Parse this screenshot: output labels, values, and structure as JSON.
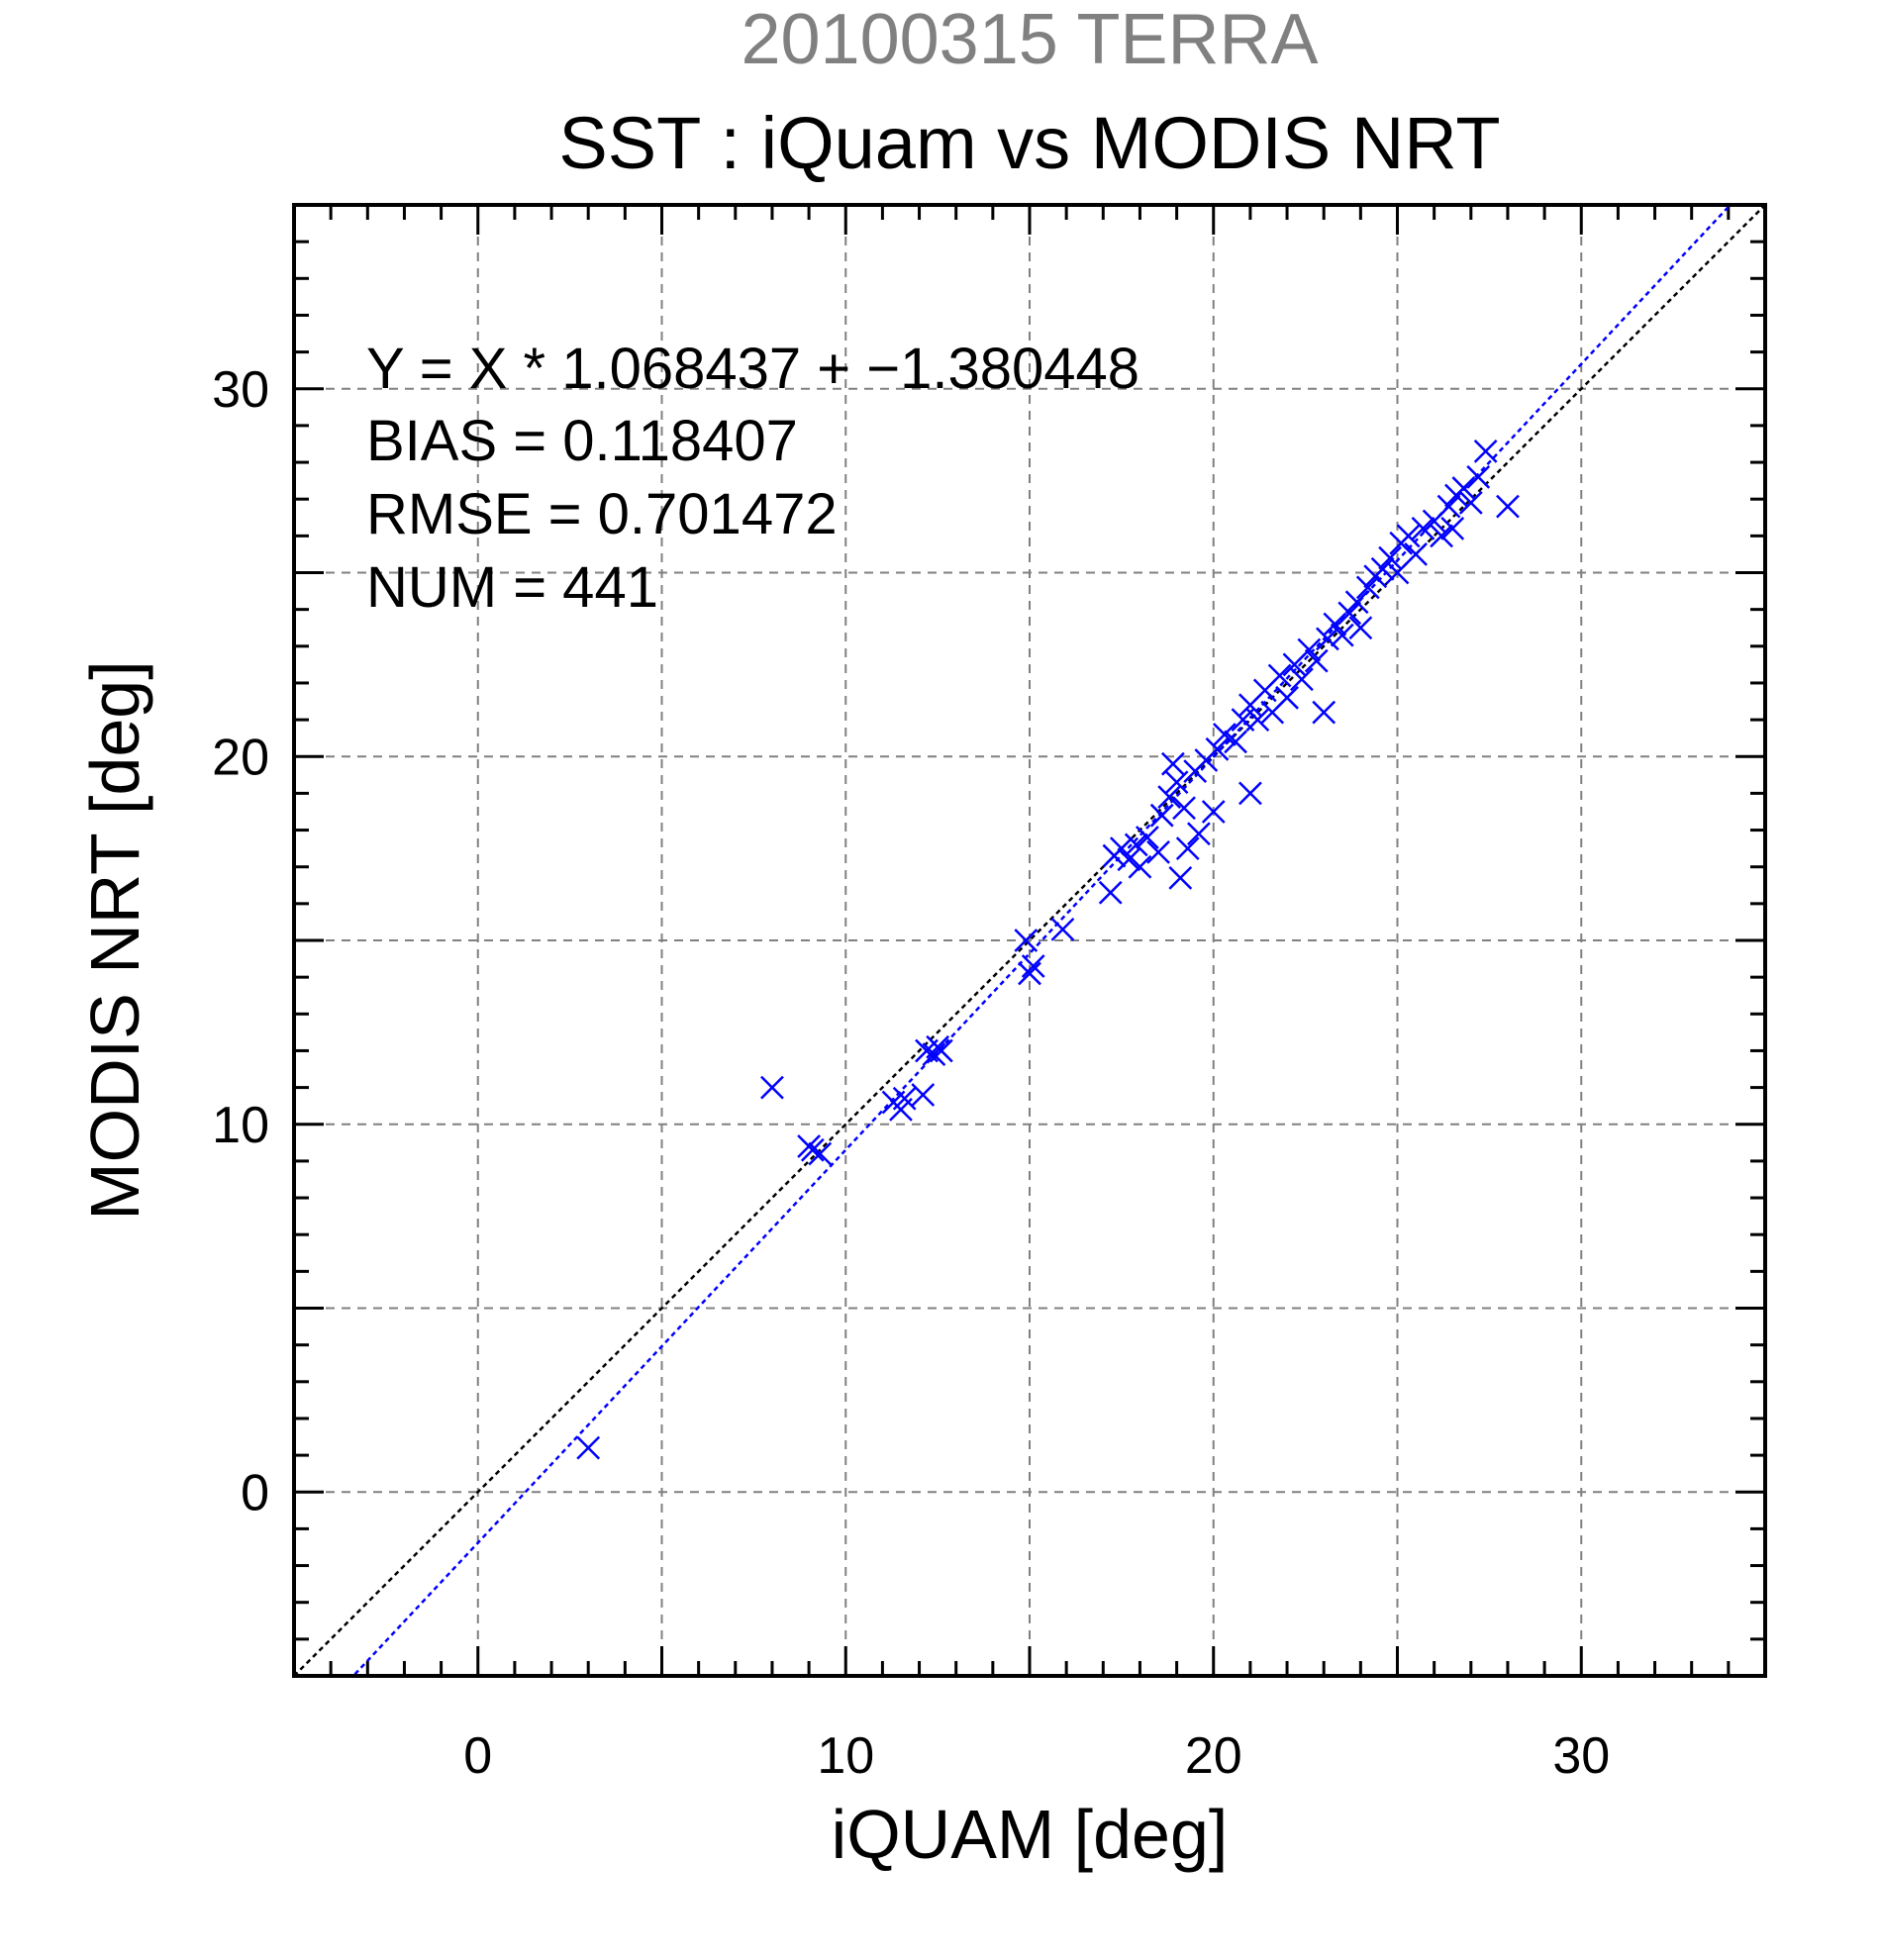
{
  "header": {
    "top_title": "20100315 TERRA",
    "main_title": "SST : iQuam vs MODIS NRT"
  },
  "stats": {
    "equation": "Y = X * 1.068437 + −1.380448",
    "bias": "BIAS = 0.118407",
    "rmse": "RMSE = 0.701472",
    "num": "NUM = 441"
  },
  "colors": {
    "points": "#0000ff",
    "fit_line": "#0000ff",
    "identity_line": "#000000",
    "grid": "#808080",
    "top_title": "#808080"
  },
  "chart_data": {
    "type": "scatter",
    "title": "SST : iQuam vs MODIS NRT",
    "subtitle": "20100315 TERRA",
    "xlabel": "iQUAM [deg]",
    "ylabel": "MODIS NRT [deg]",
    "xlim": [
      -5,
      35
    ],
    "ylim": [
      -5,
      35
    ],
    "xticks": [
      0,
      10,
      20,
      30
    ],
    "yticks": [
      0,
      10,
      20,
      30
    ],
    "grid": true,
    "marker": "x",
    "fit": {
      "slope": 1.068437,
      "intercept": -1.380448
    },
    "identity": true,
    "points": [
      [
        3.0,
        1.2
      ],
      [
        8.0,
        11.0
      ],
      [
        9.1,
        9.3
      ],
      [
        9.3,
        9.2
      ],
      [
        9.0,
        9.4
      ],
      [
        11.3,
        10.6
      ],
      [
        11.5,
        10.4
      ],
      [
        11.6,
        10.7
      ],
      [
        12.1,
        10.8
      ],
      [
        12.2,
        12.0
      ],
      [
        12.4,
        11.9
      ],
      [
        12.5,
        12.1
      ],
      [
        12.6,
        12.0
      ],
      [
        14.9,
        15.0
      ],
      [
        15.0,
        14.1
      ],
      [
        15.1,
        14.3
      ],
      [
        15.9,
        15.3
      ],
      [
        17.2,
        16.3
      ],
      [
        17.3,
        17.3
      ],
      [
        17.5,
        17.5
      ],
      [
        17.7,
        17.2
      ],
      [
        17.9,
        17.6
      ],
      [
        18.0,
        17.0
      ],
      [
        18.2,
        17.8
      ],
      [
        18.5,
        17.4
      ],
      [
        18.6,
        18.4
      ],
      [
        18.8,
        18.9
      ],
      [
        18.9,
        19.8
      ],
      [
        19.0,
        19.3
      ],
      [
        19.2,
        18.6
      ],
      [
        19.1,
        16.7
      ],
      [
        19.3,
        17.5
      ],
      [
        19.5,
        19.6
      ],
      [
        19.6,
        17.9
      ],
      [
        19.8,
        19.9
      ],
      [
        20.0,
        18.5
      ],
      [
        20.1,
        20.2
      ],
      [
        20.3,
        20.6
      ],
      [
        20.6,
        20.4
      ],
      [
        20.8,
        21.0
      ],
      [
        21.0,
        21.4
      ],
      [
        21.0,
        19.0
      ],
      [
        21.2,
        21.0
      ],
      [
        21.4,
        21.8
      ],
      [
        21.6,
        21.2
      ],
      [
        21.8,
        22.2
      ],
      [
        22.0,
        21.6
      ],
      [
        22.2,
        22.5
      ],
      [
        22.4,
        22.1
      ],
      [
        22.6,
        22.9
      ],
      [
        22.8,
        22.6
      ],
      [
        23.0,
        21.2
      ],
      [
        23.1,
        23.2
      ],
      [
        23.3,
        23.6
      ],
      [
        23.5,
        23.3
      ],
      [
        23.7,
        23.9
      ],
      [
        23.9,
        24.2
      ],
      [
        24.0,
        23.5
      ],
      [
        24.2,
        24.6
      ],
      [
        24.4,
        24.9
      ],
      [
        24.6,
        25.1
      ],
      [
        24.8,
        25.4
      ],
      [
        25.0,
        25.0
      ],
      [
        25.1,
        25.8
      ],
      [
        25.3,
        26.0
      ],
      [
        25.5,
        25.5
      ],
      [
        25.7,
        26.2
      ],
      [
        26.0,
        26.4
      ],
      [
        26.2,
        26.0
      ],
      [
        26.4,
        26.8
      ],
      [
        26.5,
        26.2
      ],
      [
        26.6,
        27.1
      ],
      [
        26.8,
        27.3
      ],
      [
        27.0,
        26.9
      ],
      [
        27.2,
        27.6
      ],
      [
        27.4,
        28.3
      ],
      [
        28.0,
        26.8
      ]
    ]
  }
}
